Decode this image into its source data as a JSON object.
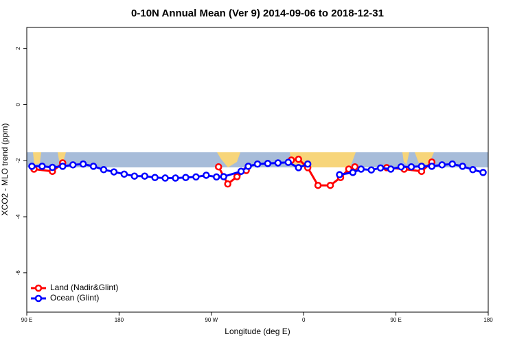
{
  "chart_data": {
    "type": "line",
    "title": "0-10N Annual Mean (Ver 9)   2014-09-06 to 2018-12-31",
    "x_label": "Longitude (deg E)",
    "y_label": "XCO2 - MLO trend (ppm)",
    "xlim": [
      90,
      540
    ],
    "ylim": [
      -7.4,
      2.75
    ],
    "xticks": [
      {
        "value": 90,
        "label": "90 E"
      },
      180,
      {
        "value": 270,
        "label": "90 W"
      },
      {
        "value": 360,
        "label": "0"
      },
      {
        "value": 450,
        "label": "90 E"
      },
      {
        "value": 540,
        "label": "180"
      }
    ],
    "yticks": [
      2,
      0,
      -2,
      -4,
      -6
    ],
    "legend": "bottom-left",
    "series": [
      {
        "name": "Land (Nadir&Glint)",
        "color": "#ff0000",
        "x": [
          97,
          115,
          125,
          null,
          277,
          286,
          295,
          304,
          null,
          348,
          355,
          364,
          374,
          386,
          396,
          404,
          410,
          null,
          441,
          458,
          475,
          485
        ],
        "values": [
          -2.3,
          -2.38,
          -2.08,
          null,
          -2.22,
          -2.83,
          -2.57,
          -2.35,
          null,
          -1.98,
          -1.95,
          -2.25,
          -2.88,
          -2.88,
          -2.6,
          -2.3,
          -2.22,
          null,
          -2.25,
          -2.3,
          -2.38,
          -2.05
        ]
      },
      {
        "name": "Ocean (Glint)",
        "color": "#0000ff",
        "x": [
          95,
          105,
          115,
          125,
          135,
          145,
          155,
          165,
          175,
          185,
          195,
          205,
          215,
          225,
          235,
          245,
          255,
          265,
          275,
          282,
          299,
          306,
          315,
          325,
          335,
          345,
          355,
          364,
          null,
          395,
          408,
          416,
          426,
          435,
          445,
          455,
          465,
          475,
          485,
          495,
          505,
          515,
          525,
          535
        ],
        "values": [
          -2.2,
          -2.2,
          -2.24,
          -2.2,
          -2.15,
          -2.12,
          -2.2,
          -2.32,
          -2.4,
          -2.48,
          -2.55,
          -2.55,
          -2.6,
          -2.62,
          -2.62,
          -2.6,
          -2.58,
          -2.52,
          -2.58,
          -2.57,
          -2.38,
          -2.2,
          -2.12,
          -2.1,
          -2.08,
          -2.06,
          -2.25,
          -2.12,
          null,
          -2.5,
          -2.42,
          -2.3,
          -2.33,
          -2.26,
          -2.3,
          -2.22,
          -2.22,
          -2.2,
          -2.2,
          -2.15,
          -2.12,
          -2.2,
          -2.32,
          -2.42
        ]
      }
    ]
  }
}
